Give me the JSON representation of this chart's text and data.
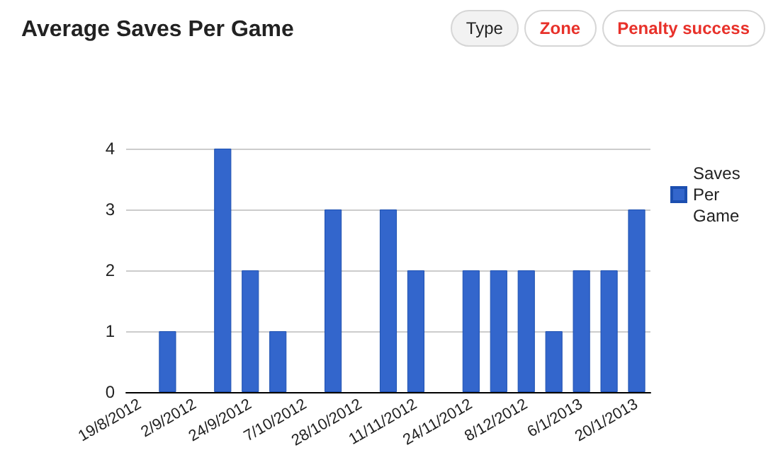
{
  "chart_data": {
    "type": "bar",
    "title": "Average Saves Per Game",
    "categories": [
      "19/8/2012",
      null,
      "2/9/2012",
      null,
      "24/9/2012",
      null,
      "7/10/2012",
      null,
      "28/10/2012",
      null,
      "11/11/2012",
      null,
      "24/11/2012",
      null,
      "8/12/2012",
      null,
      "6/1/2013",
      null,
      "20/1/2013"
    ],
    "series": [
      {
        "name": "Saves Per Game",
        "color": "#3366cc",
        "values": [
          null,
          1,
          null,
          4,
          2,
          1,
          null,
          3,
          null,
          3,
          2,
          null,
          2,
          2,
          2,
          1,
          2,
          2,
          3
        ]
      }
    ],
    "ylim": [
      0,
      4
    ],
    "yticks": [
      0,
      1,
      2,
      3,
      4
    ],
    "grid": "y",
    "legend": "right",
    "annotations": [
      "Type",
      "Zone",
      "Penalty success"
    ]
  }
}
